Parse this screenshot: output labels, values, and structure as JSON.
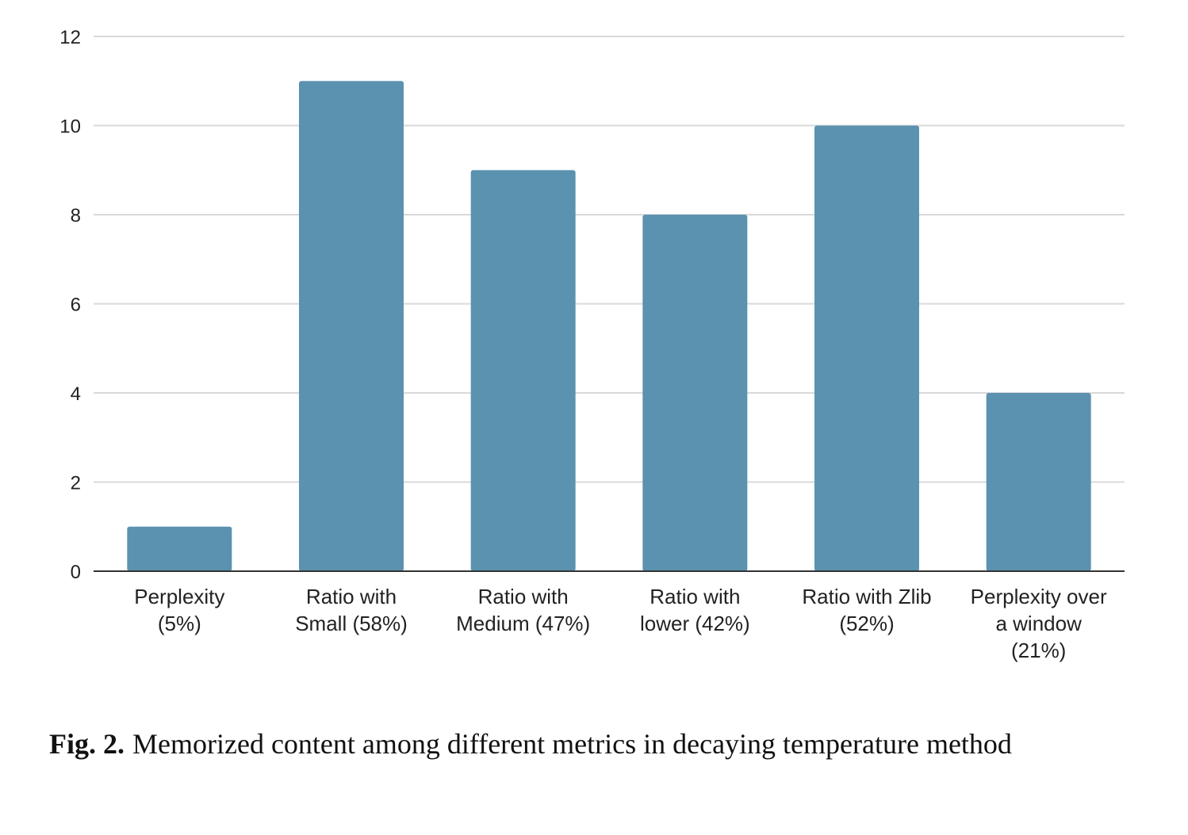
{
  "caption": {
    "label": "Fig. 2.",
    "text": "Memorized content among different metrics in decaying temperature method"
  },
  "chart_data": {
    "type": "bar",
    "categories": [
      [
        "Perplexity",
        "(5%)"
      ],
      [
        "Ratio with",
        "Small (58%)"
      ],
      [
        "Ratio with",
        "Medium (47%)"
      ],
      [
        "Ratio with",
        "lower (42%)"
      ],
      [
        "Ratio with Zlib",
        "(52%)"
      ],
      [
        "Perplexity over",
        "a window",
        "(21%)"
      ]
    ],
    "values": [
      1,
      11,
      9,
      8,
      10,
      4
    ],
    "ylim": [
      0,
      12
    ],
    "yticks": [
      0,
      2,
      4,
      6,
      8,
      10,
      12
    ],
    "grid": true,
    "title": "",
    "xlabel": "",
    "ylabel": "",
    "bar_color": "#5b92b0",
    "grid_color": "#d9d9d9",
    "axis_color": "#333333"
  }
}
